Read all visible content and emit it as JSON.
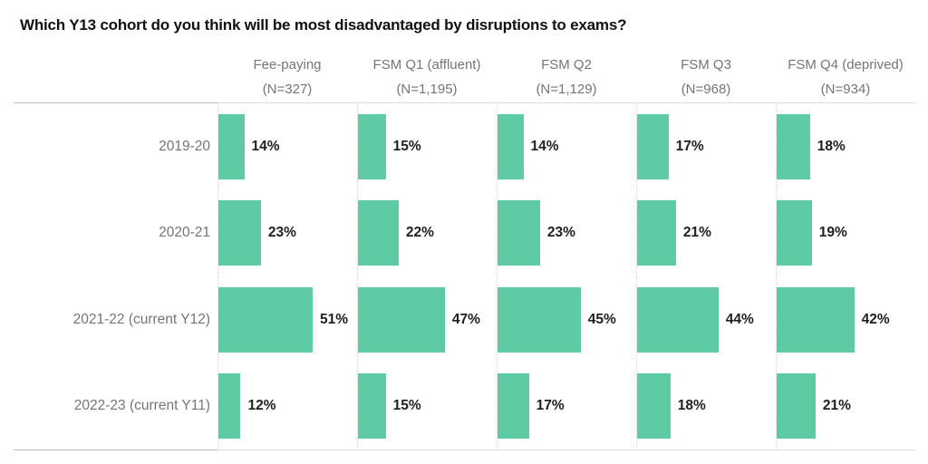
{
  "title": "Which Y13 cohort do you think will be most disadvantaged by disruptions to exams?",
  "colors": {
    "title": "#111111",
    "bar": "#5FCBA4",
    "value_label": "#1F1F1F",
    "header_text": "#757575",
    "row_label": "#757575",
    "grid_dotted": "#D9D9D9",
    "chart_line": "#DEDEDE",
    "axis_left_line": "#B9B9B9"
  },
  "chart_data": {
    "type": "bar",
    "orientation": "horizontal",
    "title": "Which Y13 cohort do you think will be most disadvantaged by disruptions to exams?",
    "xlabel": "",
    "ylabel": "",
    "xlim": [
      0,
      75
    ],
    "grid": "dotted-column-baselines",
    "legend_position": "none",
    "value_suffix": "%",
    "categories": [
      "2019-20",
      "2020-21",
      "2021-22 (current Y12)",
      "2022-23 (current Y11)"
    ],
    "series": [
      {
        "name": "Fee-paying",
        "n_label": "(N=327)",
        "values": [
          14,
          23,
          51,
          12
        ]
      },
      {
        "name": "FSM Q1 (affluent)",
        "n_label": "(N=1,195)",
        "values": [
          15,
          22,
          47,
          15
        ]
      },
      {
        "name": "FSM Q2",
        "n_label": "(N=1,129)",
        "values": [
          14,
          23,
          45,
          17
        ]
      },
      {
        "name": "FSM Q3",
        "n_label": "(N=968)",
        "values": [
          17,
          21,
          44,
          18
        ]
      },
      {
        "name": "FSM Q4 (deprived)",
        "n_label": "(N=934)",
        "values": [
          18,
          19,
          42,
          21
        ]
      }
    ]
  }
}
